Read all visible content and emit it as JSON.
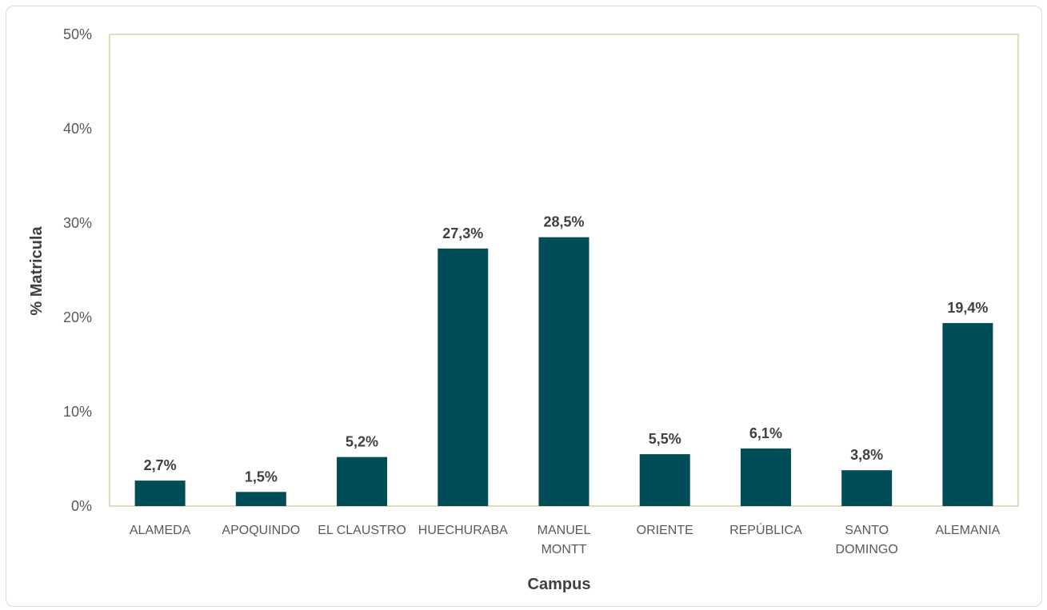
{
  "chart_data": {
    "type": "bar",
    "title": "",
    "xlabel": "Campus",
    "ylabel": "% Matricula",
    "ylim": [
      0,
      50
    ],
    "yticks": [
      0,
      10,
      20,
      30,
      40,
      50
    ],
    "ytick_labels": [
      "0%",
      "10%",
      "20%",
      "30%",
      "40%",
      "50%"
    ],
    "categories": [
      [
        "ALAMEDA"
      ],
      [
        "APOQUINDO"
      ],
      [
        "EL CLAUSTRO"
      ],
      [
        "HUECHURABA"
      ],
      [
        "MANUEL",
        "MONTT"
      ],
      [
        "ORIENTE"
      ],
      [
        "REPÚBLICA"
      ],
      [
        "SANTO",
        "DOMINGO"
      ],
      [
        "ALEMANIA"
      ]
    ],
    "values": [
      2.7,
      1.5,
      5.2,
      27.3,
      28.5,
      5.5,
      6.1,
      3.8,
      19.4
    ],
    "data_labels": [
      "2,7%",
      "1,5%",
      "5,2%",
      "27,3%",
      "28,5%",
      "5,5%",
      "6,1%",
      "3,8%",
      "19,4%"
    ],
    "bar_color": "#004C57",
    "plot_border_color": "#D6CFA8",
    "grid": false,
    "legend": "none"
  }
}
